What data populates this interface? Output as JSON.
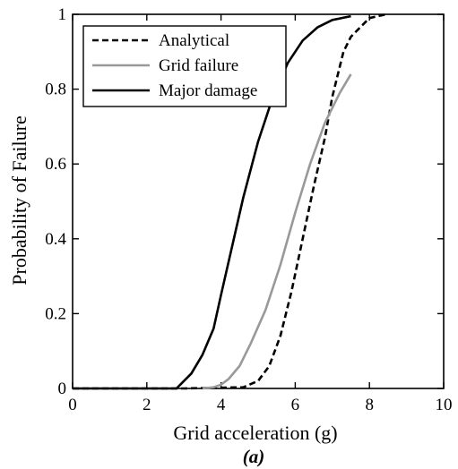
{
  "chart_data": {
    "type": "line",
    "xlabel": "Grid acceleration (g)",
    "ylabel": "Probability of Failure",
    "caption": "(a)",
    "xlim": [
      0,
      10
    ],
    "ylim": [
      0,
      1
    ],
    "xticks": [
      0,
      2,
      4,
      6,
      8,
      10
    ],
    "yticks": [
      0,
      0.2,
      0.4,
      0.6,
      0.8,
      1
    ],
    "ytick_labels": [
      "0",
      "0.2",
      "0.4",
      "0.6",
      "0.8",
      "1"
    ],
    "grid": false,
    "legend_position": "top-left",
    "series": [
      {
        "name": "Analytical",
        "color": "#000000",
        "style": "dashed",
        "points": [
          [
            0,
            0
          ],
          [
            3,
            0
          ],
          [
            4.6,
            0.003
          ],
          [
            5.0,
            0.02
          ],
          [
            5.3,
            0.06
          ],
          [
            5.6,
            0.14
          ],
          [
            5.9,
            0.26
          ],
          [
            6.2,
            0.4
          ],
          [
            6.5,
            0.54
          ],
          [
            6.8,
            0.67
          ],
          [
            7.0,
            0.78
          ],
          [
            7.15,
            0.84
          ],
          [
            7.3,
            0.9
          ],
          [
            7.5,
            0.94
          ],
          [
            7.8,
            0.97
          ],
          [
            8.0,
            0.99
          ],
          [
            8.45,
            1.0
          ]
        ]
      },
      {
        "name": "Grid failure",
        "color": "#999999",
        "style": "solid",
        "points": [
          [
            3.5,
            0
          ],
          [
            3.8,
            0.003
          ],
          [
            4.0,
            0.01
          ],
          [
            4.2,
            0.025
          ],
          [
            4.5,
            0.06
          ],
          [
            4.8,
            0.12
          ],
          [
            5.2,
            0.21
          ],
          [
            5.6,
            0.33
          ],
          [
            6.0,
            0.47
          ],
          [
            6.4,
            0.6
          ],
          [
            6.8,
            0.71
          ],
          [
            7.2,
            0.79
          ],
          [
            7.5,
            0.84
          ]
        ]
      },
      {
        "name": "Major damage",
        "color": "#000000",
        "style": "solid",
        "points": [
          [
            0,
            0
          ],
          [
            2.8,
            0
          ],
          [
            2.9,
            0.01
          ],
          [
            3.2,
            0.04
          ],
          [
            3.5,
            0.09
          ],
          [
            3.8,
            0.16
          ],
          [
            4.0,
            0.25
          ],
          [
            4.3,
            0.38
          ],
          [
            4.6,
            0.51
          ],
          [
            5.0,
            0.66
          ],
          [
            5.4,
            0.78
          ],
          [
            5.8,
            0.87
          ],
          [
            6.2,
            0.93
          ],
          [
            6.6,
            0.965
          ],
          [
            7.0,
            0.985
          ],
          [
            7.5,
            0.995
          ]
        ]
      }
    ]
  }
}
